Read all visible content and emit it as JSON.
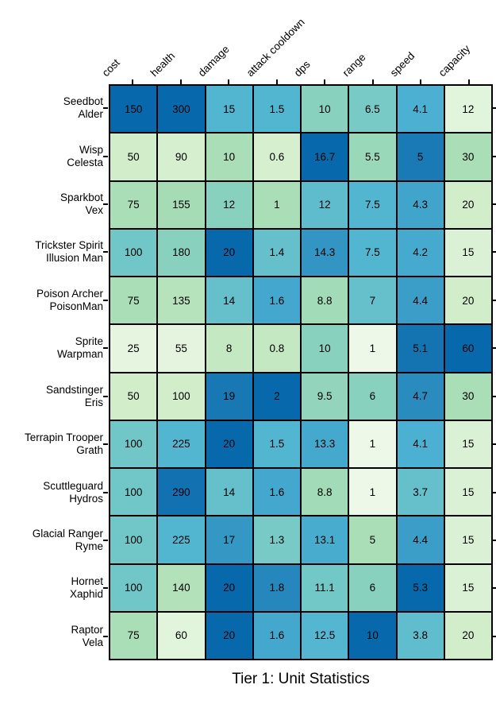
{
  "title": "Tier 1: Unit Statistics",
  "chart_data": {
    "type": "heatmap",
    "columns": [
      "cost",
      "health",
      "damage",
      "attack cooldown",
      "dps",
      "range",
      "speed",
      "capacity"
    ],
    "row_labels": [
      "Seedbot\nAlder",
      "Wisp\nCelesta",
      "Sparkbot\nVex",
      "Trickster Spirit\nIllusion Man",
      "Poison Archer\nPoisonMan",
      "Sprite\nWarpman",
      "Sandstinger\nEris",
      "Terrapin Trooper\nGrath",
      "Scuttleguard\nHydros",
      "Glacial Ranger\nRyme",
      "Hornet\nXaphid",
      "Raptor\nVela"
    ],
    "values": [
      [
        150,
        300,
        15,
        1.5,
        10,
        6.5,
        4.1,
        12
      ],
      [
        50,
        90,
        10,
        0.6,
        16.7,
        5.5,
        5,
        30
      ],
      [
        75,
        155,
        12,
        1,
        12,
        7.5,
        4.3,
        20
      ],
      [
        100,
        180,
        20,
        1.4,
        14.3,
        7.5,
        4.2,
        15
      ],
      [
        75,
        135,
        14,
        1.6,
        8.8,
        7,
        4.4,
        20
      ],
      [
        25,
        55,
        8,
        0.8,
        10,
        1,
        5.1,
        60
      ],
      [
        50,
        100,
        19,
        2,
        9.5,
        6,
        4.7,
        30
      ],
      [
        100,
        225,
        20,
        1.5,
        13.3,
        1,
        4.1,
        15
      ],
      [
        100,
        290,
        14,
        1.6,
        8.8,
        1,
        3.7,
        15
      ],
      [
        100,
        225,
        17,
        1.3,
        13.1,
        5,
        4.4,
        15
      ],
      [
        100,
        140,
        20,
        1.8,
        11.1,
        6,
        5.3,
        15
      ],
      [
        75,
        60,
        20,
        1.6,
        12.5,
        10,
        3.8,
        20
      ]
    ],
    "color_scale": {
      "colormap": "GnBu",
      "stops": [
        "#f7fcf0",
        "#e0f3db",
        "#ccebc5",
        "#a8ddb5",
        "#7bccc4",
        "#4eb3d3",
        "#2b8cbe",
        "#0868ac",
        "#084081"
      ],
      "normalization": "per-column value/max",
      "gamma": 1.25,
      "top": 0.875
    },
    "cell_text_color": "#000000",
    "grid_line_color": "#000000",
    "background": "#ffffff",
    "legend": "none",
    "title_position": "bottom"
  }
}
